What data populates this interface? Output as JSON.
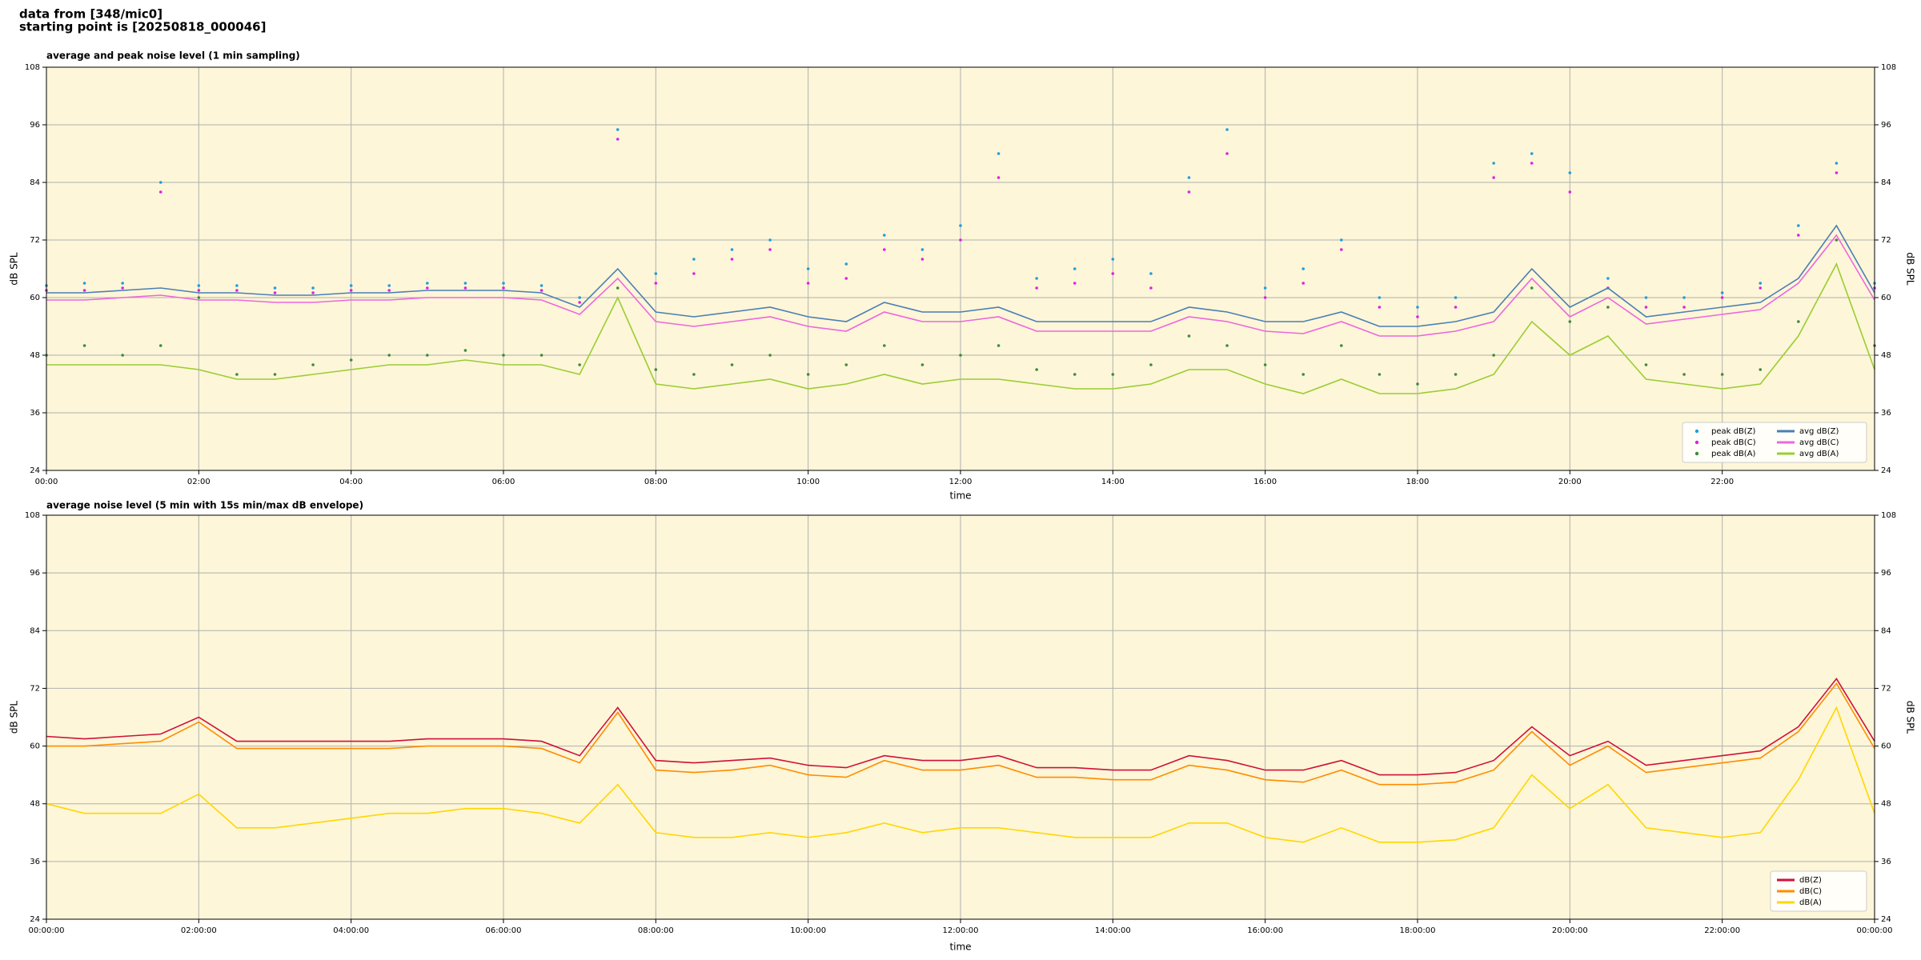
{
  "header": [
    "data from [348/mic0]",
    "starting point is [20250818_000046]"
  ],
  "chart_data": [
    {
      "type": "line",
      "title": "average and peak noise level (1 min sampling)",
      "xlabel": "time",
      "ylabel": "dB SPL",
      "x": [
        0,
        0.5,
        1,
        1.5,
        2,
        2.5,
        3,
        3.5,
        4,
        4.5,
        5,
        5.5,
        6,
        6.5,
        7,
        7.5,
        8,
        8.5,
        9,
        9.5,
        10,
        10.5,
        11,
        11.5,
        12,
        12.5,
        13,
        13.5,
        14,
        14.5,
        15,
        15.5,
        16,
        16.5,
        17,
        17.5,
        18,
        18.5,
        19,
        19.5,
        20,
        20.5,
        21,
        21.5,
        22,
        22.5,
        23,
        23.5,
        24
      ],
      "xlim": [
        0,
        24
      ],
      "xticks": [
        {
          "value": 0,
          "label": "00:00"
        },
        {
          "value": 2,
          "label": "02:00"
        },
        {
          "value": 4,
          "label": "04:00"
        },
        {
          "value": 6,
          "label": "06:00"
        },
        {
          "value": 8,
          "label": "08:00"
        },
        {
          "value": 10,
          "label": "10:00"
        },
        {
          "value": 12,
          "label": "12:00"
        },
        {
          "value": 14,
          "label": "14:00"
        },
        {
          "value": 16,
          "label": "16:00"
        },
        {
          "value": 18,
          "label": "18:00"
        },
        {
          "value": 20,
          "label": "20:00"
        },
        {
          "value": 22,
          "label": "22:00"
        }
      ],
      "ylim": [
        24,
        108
      ],
      "yticks": [
        24,
        36,
        48,
        60,
        72,
        84,
        96,
        108
      ],
      "grid": true,
      "legend": "lower right",
      "legend_columns": 2,
      "series": [
        {
          "name": "peak dB(Z)",
          "kind": "scatter",
          "color": "#1f9ede",
          "values": [
            62.5,
            63,
            63,
            84,
            62.5,
            62.5,
            62,
            62,
            62.5,
            62.5,
            63,
            63,
            63,
            62.5,
            60,
            95,
            65,
            68,
            70,
            72,
            66,
            67,
            73,
            70,
            75,
            90,
            64,
            66,
            68,
            65,
            85,
            95,
            62,
            66,
            72,
            60,
            58,
            60,
            88,
            90,
            86,
            64,
            60,
            60,
            61,
            63,
            75,
            88,
            63
          ]
        },
        {
          "name": "peak dB(C)",
          "kind": "scatter",
          "color": "#e020e0",
          "values": [
            61.5,
            61.5,
            62,
            82,
            61.5,
            61.5,
            61,
            61,
            61.5,
            61.5,
            62,
            62,
            62,
            61.5,
            59,
            93,
            63,
            65,
            68,
            70,
            63,
            64,
            70,
            68,
            72,
            85,
            62,
            63,
            65,
            62,
            82,
            90,
            60,
            63,
            70,
            58,
            56,
            58,
            85,
            88,
            82,
            62,
            58,
            58,
            60,
            62,
            73,
            86,
            62
          ]
        },
        {
          "name": "peak dB(A)",
          "kind": "scatter",
          "color": "#3c8c3c",
          "values": [
            48,
            50,
            48,
            50,
            60,
            44,
            44,
            46,
            47,
            48,
            48,
            49,
            48,
            48,
            46,
            62,
            45,
            44,
            46,
            48,
            44,
            46,
            50,
            46,
            48,
            50,
            45,
            44,
            44,
            46,
            52,
            50,
            46,
            44,
            50,
            44,
            42,
            44,
            48,
            62,
            55,
            58,
            46,
            44,
            44,
            45,
            55,
            72,
            50
          ]
        },
        {
          "name": "avg dB(Z)",
          "kind": "line",
          "color": "#4a7fb5",
          "values": [
            61,
            61,
            61.5,
            62,
            61,
            61,
            60.5,
            60.5,
            61,
            61,
            61.5,
            61.5,
            61.5,
            61,
            58,
            66,
            57,
            56,
            57,
            58,
            56,
            55,
            59,
            57,
            57,
            58,
            55,
            55,
            55,
            55,
            58,
            57,
            55,
            55,
            57,
            54,
            54,
            55,
            57,
            66,
            58,
            62,
            56,
            57,
            58,
            59,
            64,
            75,
            61
          ]
        },
        {
          "name": "avg dB(C)",
          "kind": "line",
          "color": "#ee66dd",
          "values": [
            59.5,
            59.5,
            60,
            60.5,
            59.5,
            59.5,
            59,
            59,
            59.5,
            59.5,
            60,
            60,
            60,
            59.5,
            56.5,
            64,
            55,
            54,
            55,
            56,
            54,
            53,
            57,
            55,
            55,
            56,
            53,
            53,
            53,
            53,
            56,
            55,
            53,
            52.5,
            55,
            52,
            52,
            53,
            55,
            64,
            56,
            60,
            54.5,
            55.5,
            56.5,
            57.5,
            63,
            73,
            59.5
          ]
        },
        {
          "name": "avg dB(A)",
          "kind": "line",
          "color": "#9acd32",
          "values": [
            46,
            46,
            46,
            46,
            45,
            43,
            43,
            44,
            45,
            46,
            46,
            47,
            46,
            46,
            44,
            60,
            42,
            41,
            42,
            43,
            41,
            42,
            44,
            42,
            43,
            43,
            42,
            41,
            41,
            42,
            45,
            45,
            42,
            40,
            43,
            40,
            40,
            41,
            44,
            55,
            48,
            52,
            43,
            42,
            41,
            42,
            52,
            67,
            45
          ]
        }
      ]
    },
    {
      "type": "line",
      "title": "average noise level (5 min with 15s min/max dB envelope)",
      "xlabel": "time",
      "ylabel": "dB SPL",
      "x": [
        0,
        0.5,
        1,
        1.5,
        2,
        2.5,
        3,
        3.5,
        4,
        4.5,
        5,
        5.5,
        6,
        6.5,
        7,
        7.5,
        8,
        8.5,
        9,
        9.5,
        10,
        10.5,
        11,
        11.5,
        12,
        12.5,
        13,
        13.5,
        14,
        14.5,
        15,
        15.5,
        16,
        16.5,
        17,
        17.5,
        18,
        18.5,
        19,
        19.5,
        20,
        20.5,
        21,
        21.5,
        22,
        22.5,
        23,
        23.5,
        24
      ],
      "xlim": [
        0,
        24
      ],
      "xticks": [
        {
          "value": 0,
          "label": "00:00:00"
        },
        {
          "value": 2,
          "label": "02:00:00"
        },
        {
          "value": 4,
          "label": "04:00:00"
        },
        {
          "value": 6,
          "label": "06:00:00"
        },
        {
          "value": 8,
          "label": "08:00:00"
        },
        {
          "value": 10,
          "label": "10:00:00"
        },
        {
          "value": 12,
          "label": "12:00:00"
        },
        {
          "value": 14,
          "label": "14:00:00"
        },
        {
          "value": 16,
          "label": "16:00:00"
        },
        {
          "value": 18,
          "label": "18:00:00"
        },
        {
          "value": 20,
          "label": "20:00:00"
        },
        {
          "value": 22,
          "label": "22:00:00"
        },
        {
          "value": 24,
          "label": "00:00:00"
        }
      ],
      "ylim": [
        24,
        108
      ],
      "yticks": [
        24,
        36,
        48,
        60,
        72,
        84,
        96,
        108
      ],
      "grid": true,
      "legend": "lower right",
      "legend_columns": 1,
      "series": [
        {
          "name": "dB(Z)",
          "kind": "line",
          "color": "#d0103a",
          "values": [
            62,
            61.5,
            62,
            62.5,
            66,
            61,
            61,
            61,
            61,
            61,
            61.5,
            61.5,
            61.5,
            61,
            58,
            68,
            57,
            56.5,
            57,
            57.5,
            56,
            55.5,
            58,
            57,
            57,
            58,
            55.5,
            55.5,
            55,
            55,
            58,
            57,
            55,
            55,
            57,
            54,
            54,
            54.5,
            57,
            64,
            58,
            61,
            56,
            57,
            58,
            59,
            64,
            74,
            61
          ]
        },
        {
          "name": "dB(C)",
          "kind": "line",
          "color": "#ff8c00",
          "values": [
            60,
            60,
            60.5,
            61,
            65,
            59.5,
            59.5,
            59.5,
            59.5,
            59.5,
            60,
            60,
            60,
            59.5,
            56.5,
            67,
            55,
            54.5,
            55,
            56,
            54,
            53.5,
            57,
            55,
            55,
            56,
            53.5,
            53.5,
            53,
            53,
            56,
            55,
            53,
            52.5,
            55,
            52,
            52,
            52.5,
            55,
            63,
            56,
            60,
            54.5,
            55.5,
            56.5,
            57.5,
            63,
            73,
            59.5
          ]
        },
        {
          "name": "dB(A)",
          "kind": "line",
          "color": "#ffd700",
          "values": [
            48,
            46,
            46,
            46,
            50,
            43,
            43,
            44,
            45,
            46,
            46,
            47,
            47,
            46,
            44,
            52,
            42,
            41,
            41,
            42,
            41,
            42,
            44,
            42,
            43,
            43,
            42,
            41,
            41,
            41,
            44,
            44,
            41,
            40,
            43,
            40,
            40,
            40.5,
            43,
            54,
            47,
            52,
            43,
            42,
            41,
            42,
            53,
            68,
            46
          ]
        }
      ]
    }
  ]
}
